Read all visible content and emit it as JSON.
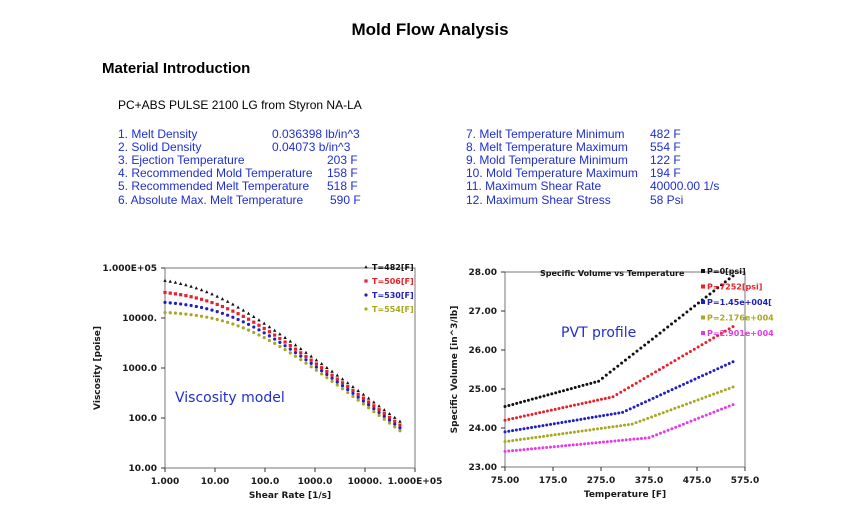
{
  "page": {
    "title": "Mold Flow Analysis",
    "section_title": "Material Introduction",
    "material": "PC+ABS PULSE 2100 LG from Styron NA-LA"
  },
  "properties_left": [
    {
      "label": "1. Melt Density",
      "value": "0.036398 lb/in^3"
    },
    {
      "label": "2. Solid Density",
      "value": "0.04073 b/in^3"
    },
    {
      "label": "3. Ejection Temperature",
      "value": "203  F"
    },
    {
      "label": "4. Recommended Mold Temperature",
      "value": "158  F"
    },
    {
      "label": "5. Recommended Melt Temperature",
      "value": "518  F"
    },
    {
      "label": "6. Absolute Max. Melt Temperature",
      "value": "590  F"
    }
  ],
  "properties_right": [
    {
      "label": "7. Melt  Temperature Minimum",
      "value": "482 F"
    },
    {
      "label": "8. Melt  Temperature Maximum",
      "value": "554 F"
    },
    {
      "label": "9. Mold  Temperature Minimum",
      "value": "122  F"
    },
    {
      "label": "10. Mold  Temperature Maximum",
      "value": "194  F"
    },
    {
      "label": "11. Maximum Shear Rate",
      "value": "40000.00  1/s"
    },
    {
      "label": "12. Maximum Shear Stress",
      "value": "58  Psi"
    }
  ],
  "colors": {
    "property_text": "#1f2fd0",
    "axis_text": "#1a1a1a",
    "annotation": "#1f2fd0",
    "plot_border": "#777777"
  },
  "chart_data": [
    {
      "type": "scatter",
      "annotation": "Viscosity model",
      "xlabel": "Shear Rate [1/s]",
      "ylabel": "Viscosity [poise]",
      "x_scale": "log",
      "y_scale": "log",
      "xlim": [
        1,
        100000
      ],
      "ylim": [
        10,
        100000
      ],
      "x_ticks": [
        1,
        10,
        100,
        1000,
        10000,
        100000
      ],
      "x_tick_labels": [
        "1.000",
        "10.00",
        "100.0",
        "1000.0",
        "10000.",
        "1.000E+05"
      ],
      "y_ticks": [
        10,
        100,
        1000,
        10000,
        100000
      ],
      "y_tick_labels": [
        "10.00",
        "100.0",
        "1000.0",
        "10000.",
        "1.000E+05"
      ],
      "grid": false,
      "legend_position": "top-right",
      "series": [
        {
          "name": "T=482[F]",
          "color": "#111111",
          "marker": "triangle",
          "x_range": [
            1,
            50000
          ],
          "eta0": 72000,
          "lambda": 0.00013,
          "n": 0.26
        },
        {
          "name": "T=506[F]",
          "color": "#e8202a",
          "marker": "square",
          "x_range": [
            1,
            50000
          ],
          "eta0": 38000,
          "lambda": 8e-05,
          "n": 0.26
        },
        {
          "name": "T=530[F]",
          "color": "#2020c0",
          "marker": "circle",
          "x_range": [
            1,
            50000
          ],
          "eta0": 23000,
          "lambda": 5e-05,
          "n": 0.26
        },
        {
          "name": "T=554[F]",
          "color": "#a8a820",
          "marker": "circle",
          "x_range": [
            1,
            50000
          ],
          "eta0": 14000,
          "lambda": 3e-05,
          "n": 0.26
        }
      ]
    },
    {
      "type": "scatter",
      "title": "Specific Volume vs Temperature",
      "annotation": "PVT profile",
      "xlabel": "Temperature [F]",
      "ylabel": "Specific Volume [in^3/lb]",
      "xlim": [
        75,
        575
      ],
      "ylim": [
        23,
        28
      ],
      "x_ticks": [
        75,
        175,
        275,
        375,
        475,
        575
      ],
      "x_tick_labels": [
        "75.00",
        "175.0",
        "275.0",
        "375.0",
        "475.0",
        "575.0"
      ],
      "y_ticks": [
        23,
        24,
        25,
        26,
        27,
        28
      ],
      "y_tick_labels": [
        "23.00",
        "24.00",
        "25.00",
        "26.00",
        "27.00",
        "28.00"
      ],
      "grid": false,
      "legend_position": "top-right",
      "series": [
        {
          "name": "P=0[psi]",
          "color": "#111111",
          "x": [
            75,
            270,
            550
          ],
          "y": [
            24.55,
            25.2,
            27.9
          ]
        },
        {
          "name": "P=7252[psi]",
          "color": "#e8202a",
          "x": [
            75,
            300,
            550
          ],
          "y": [
            24.2,
            24.8,
            26.6
          ]
        },
        {
          "name": "P=1.45e+004[",
          "color": "#2020c0",
          "x": [
            75,
            320,
            550
          ],
          "y": [
            23.9,
            24.4,
            25.7
          ]
        },
        {
          "name": "P=2.176e+004",
          "color": "#a8a820",
          "x": [
            75,
            340,
            550
          ],
          "y": [
            23.65,
            24.1,
            25.05
          ]
        },
        {
          "name": "P=2.901e+004",
          "color": "#e43ce4",
          "x": [
            75,
            375,
            550
          ],
          "y": [
            23.4,
            23.75,
            24.6
          ]
        }
      ]
    }
  ]
}
